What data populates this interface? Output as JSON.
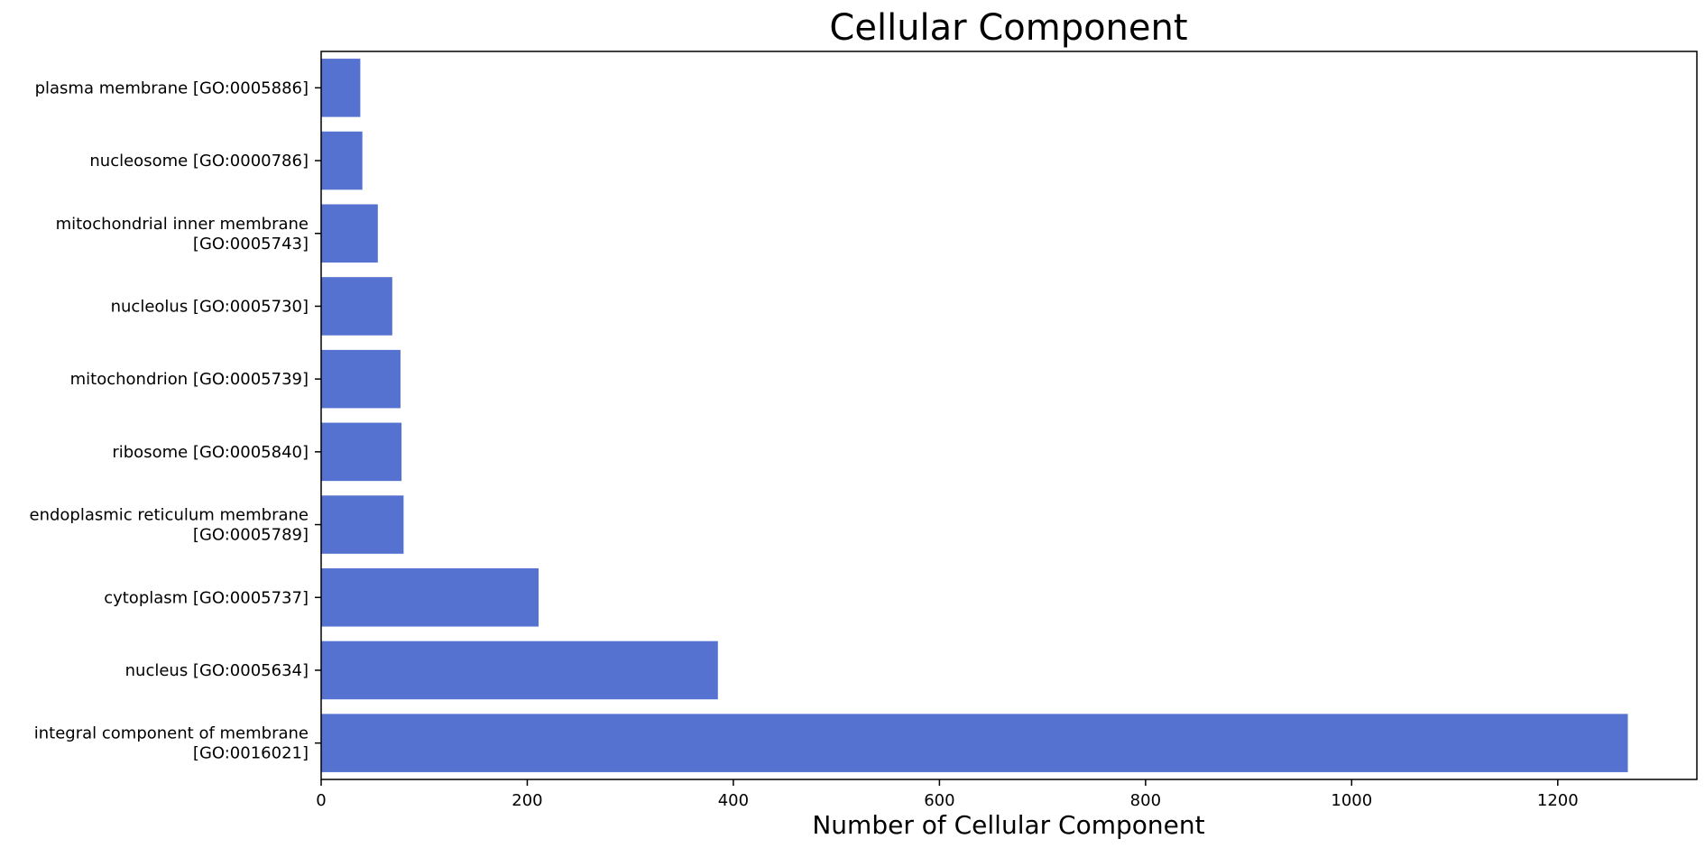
{
  "chart_data": {
    "type": "bar",
    "orientation": "horizontal",
    "title": "Cellular Component",
    "xlabel": "Number of Cellular Component",
    "ylabel": "",
    "xlim": [
      0,
      1335
    ],
    "xticks": [
      0,
      200,
      400,
      600,
      800,
      1000,
      1200
    ],
    "xtick_labels": [
      "0",
      "200",
      "400",
      "600",
      "800",
      "1000",
      "1200"
    ],
    "grid": false,
    "bar_color": "#5572d0",
    "categories": [
      [
        "plasma membrane [GO:0005886]"
      ],
      [
        "nucleosome [GO:0000786]"
      ],
      [
        "mitochondrial inner membrane",
        "[GO:0005743]"
      ],
      [
        "nucleolus [GO:0005730]"
      ],
      [
        "mitochondrion [GO:0005739]"
      ],
      [
        "ribosome [GO:0005840]"
      ],
      [
        "endoplasmic reticulum membrane",
        "[GO:0005789]"
      ],
      [
        "cytoplasm [GO:0005737]"
      ],
      [
        "nucleus [GO:0005634]"
      ],
      [
        "integral component of membrane",
        "[GO:0016021]"
      ]
    ],
    "values": [
      38,
      40,
      55,
      69,
      77,
      78,
      80,
      211,
      385,
      1268
    ]
  }
}
